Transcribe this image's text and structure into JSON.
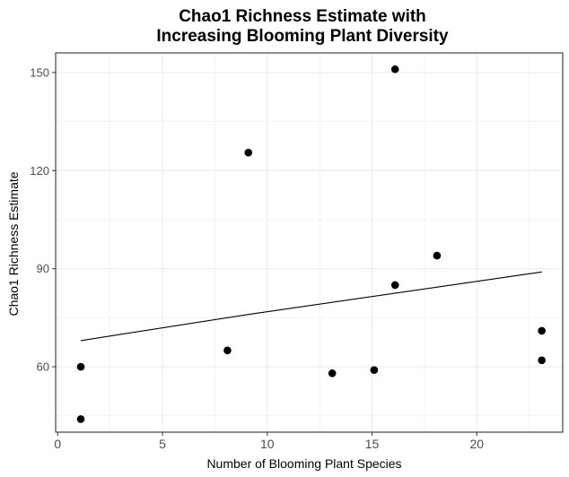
{
  "chart_data": {
    "type": "scatter",
    "title_line1": "Chao1 Richness Estimate with",
    "title_line2": "Increasing Blooming Plant Diversity",
    "xlabel": "Number of Blooming Plant Species",
    "ylabel": "Chao1 Richness Estimate",
    "xlim": [
      -0.1,
      24.1
    ],
    "ylim": [
      40,
      156
    ],
    "x_ticks": [
      0,
      5,
      10,
      15,
      20
    ],
    "y_ticks": [
      60,
      90,
      120,
      150
    ],
    "x_minor_ticks": [
      2.5,
      7.5,
      12.5,
      17.5,
      22.5
    ],
    "y_minor_ticks": [
      45,
      75,
      105,
      135
    ],
    "grid": true,
    "points": [
      {
        "x": 1.1,
        "y": 60
      },
      {
        "x": 1.1,
        "y": 44
      },
      {
        "x": 8.1,
        "y": 65
      },
      {
        "x": 9.1,
        "y": 125.5
      },
      {
        "x": 13.1,
        "y": 58
      },
      {
        "x": 15.1,
        "y": 59
      },
      {
        "x": 16.1,
        "y": 151
      },
      {
        "x": 16.1,
        "y": 85
      },
      {
        "x": 18.1,
        "y": 94
      },
      {
        "x": 23.1,
        "y": 71
      },
      {
        "x": 23.1,
        "y": 62
      }
    ],
    "trend_line": [
      {
        "x": 1.1,
        "y": 68
      },
      {
        "x": 9.1,
        "y": 76
      },
      {
        "x": 23.1,
        "y": 89
      }
    ],
    "colors": {
      "points": "#000000",
      "trend": "#000000",
      "grid": "#ebebeb",
      "panel_border": "#333333"
    }
  }
}
